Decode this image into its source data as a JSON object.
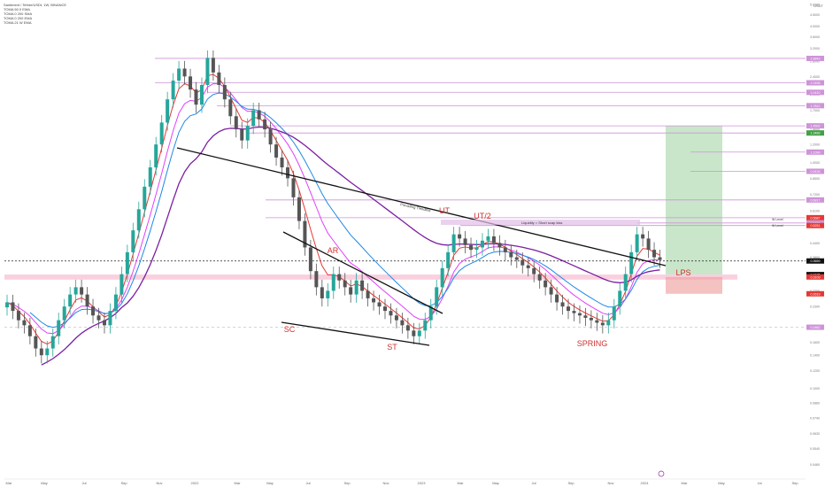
{
  "header": {
    "symbol_line": "Santiment / Tether/USDt, 1W, BINANCE",
    "indicator_lines": [
      "TOMA 50 0 EMA",
      "TOMA 0 200 SMA",
      "TOMA 0 200 EMA",
      "TOMA 21 W EMA"
    ]
  },
  "currency": "USDT",
  "colors": {
    "up": "#26a69a",
    "down": "#555555",
    "ema_red": "#e53935",
    "ema_pink": "#e040fb",
    "ema_blue": "#1e88e5",
    "ema_purple": "#7b1fa2",
    "ema_orange": "#fb8c00",
    "annot_red": "#d32f2f",
    "level_line": "#ce93d8",
    "target_zone": "#a5d6a7",
    "support_zone": "#f8bbd0"
  },
  "chart_data": {
    "type": "candlestick",
    "scale": "log",
    "ylim": [
      0.04,
      5.0
    ],
    "y_ticks": [
      "5.0000",
      "4.5000",
      "4.0000",
      "3.6000",
      "3.2000",
      "2.8000",
      "2.4000",
      "2.0000",
      "1.7000",
      "1.4000",
      "1.2000",
      "1.0000",
      "0.8500",
      "0.7200",
      "0.6100",
      "0.5200",
      "0.4400",
      "0.3800",
      "0.3200",
      "0.2700",
      "0.2300",
      "0.1900",
      "0.1600",
      "0.1400",
      "0.1200",
      "0.1000",
      "0.0860",
      "0.0740",
      "0.0630",
      "0.0540",
      "0.0460"
    ],
    "x_ticks": [
      "Mar",
      "May",
      "Jul",
      "Sep",
      "Nov",
      "2022",
      "Mar",
      "May",
      "Jul",
      "Sep",
      "Nov",
      "2023",
      "Mar",
      "May",
      "Jul",
      "Sep",
      "Nov",
      "2024",
      "Mar",
      "May",
      "Jul",
      "Sep"
    ],
    "candle_closes": [
      0.24,
      0.22,
      0.2,
      0.19,
      0.17,
      0.15,
      0.14,
      0.15,
      0.17,
      0.2,
      0.23,
      0.26,
      0.28,
      0.26,
      0.23,
      0.21,
      0.2,
      0.19,
      0.22,
      0.26,
      0.32,
      0.4,
      0.5,
      0.62,
      0.78,
      0.95,
      1.2,
      1.5,
      1.9,
      2.3,
      2.6,
      2.4,
      2.1,
      1.8,
      2.2,
      2.9,
      2.5,
      2.2,
      1.9,
      1.6,
      1.4,
      1.25,
      1.45,
      1.7,
      1.55,
      1.4,
      1.2,
      1.05,
      0.95,
      0.85,
      0.7,
      0.55,
      0.42,
      0.33,
      0.28,
      0.25,
      0.27,
      0.32,
      0.3,
      0.28,
      0.26,
      0.3,
      0.27,
      0.25,
      0.24,
      0.23,
      0.22,
      0.21,
      0.2,
      0.19,
      0.18,
      0.17,
      0.18,
      0.2,
      0.23,
      0.28,
      0.34,
      0.4,
      0.48,
      0.46,
      0.43,
      0.41,
      0.42,
      0.45,
      0.47,
      0.44,
      0.42,
      0.4,
      0.38,
      0.37,
      0.35,
      0.34,
      0.32,
      0.3,
      0.28,
      0.26,
      0.24,
      0.23,
      0.22,
      0.215,
      0.21,
      0.205,
      0.2,
      0.195,
      0.19,
      0.2,
      0.23,
      0.27,
      0.32,
      0.4,
      0.48,
      0.46,
      0.41,
      0.38,
      0.37
    ],
    "price_labels": [
      "2.8843",
      "2.2496",
      "2.0410",
      "1.7812",
      "1.4502",
      "1.3489",
      "1.1099",
      "0.9126",
      "0.6817",
      "0.5687",
      "0.5389",
      "0.5251",
      "0.3659",
      "0.3185",
      "0.3109",
      "0.2619",
      "0.1862"
    ],
    "annotations": [
      "AR",
      "SC",
      "ST",
      "UT",
      "UT/2",
      "SPRING",
      "LPS"
    ],
    "notes": [
      "Liquidity = Short scap kiss",
      "Prevailing Trendline",
      "W Level",
      "W Level"
    ]
  }
}
